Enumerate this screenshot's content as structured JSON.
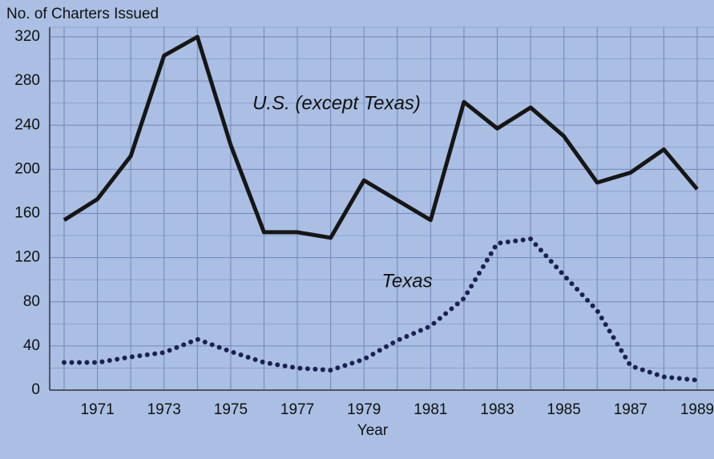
{
  "chart_data": {
    "type": "line",
    "y_label": "No. of Charters Issued",
    "x_label": "Year",
    "categories": [
      null,
      "1971",
      null,
      "1973",
      null,
      "1975",
      null,
      "1977",
      null,
      "1979",
      null,
      "1981",
      null,
      "1983",
      null,
      "1985",
      null,
      "1987",
      null,
      "1989"
    ],
    "series": [
      {
        "name": "U.S. (except Texas)",
        "color": "#161616",
        "style": "solid",
        "values": [
          154,
          173,
          212,
          303,
          320,
          222,
          143,
          143,
          138,
          190,
          172,
          154,
          261,
          237,
          256,
          230,
          188,
          197,
          218,
          182
        ]
      },
      {
        "name": "Texas",
        "color": "#1b2150",
        "style": "dotted",
        "values": [
          25,
          25,
          30,
          34,
          46,
          35,
          25,
          20,
          18,
          28,
          45,
          58,
          83,
          133,
          137,
          104,
          72,
          22,
          12,
          9
        ]
      }
    ],
    "ylim": [
      0,
      320
    ],
    "yticks": [
      0,
      40,
      80,
      120,
      160,
      200,
      240,
      280,
      320
    ],
    "grid": true
  }
}
